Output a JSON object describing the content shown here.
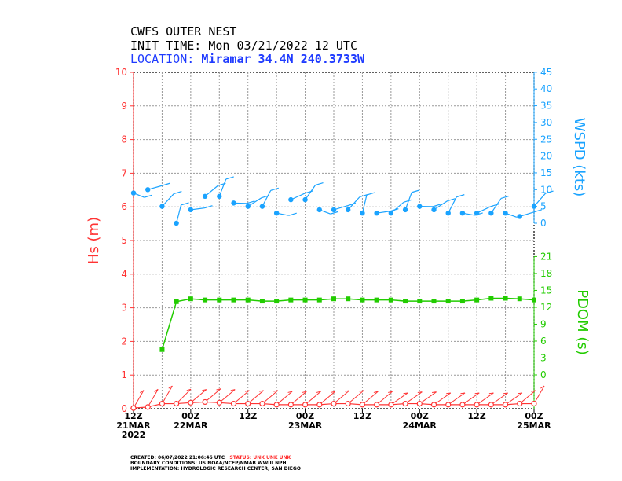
{
  "header": {
    "line1": "CWFS OUTER NEST",
    "line2": "INIT TIME: Mon 03/21/2022 12 UTC",
    "line3_label": "LOCATION: ",
    "line3_value": "Miramar 34.4N 240.3733W"
  },
  "footer": {
    "created_label": "CREATED: 06/07/2022 21:06:46 UTC",
    "status": "STATUS: UNK UNK UNK",
    "boundary": "BOUNDARY CONDITIONS: US NOAA/NCEP/NMAB WWIII NPH",
    "implementation": "IMPLEMENTATION: HYDROLOGIC RESEARCH CENTER, SAN DIEGO"
  },
  "colors": {
    "hs": "#ff3333",
    "wspd": "#1aa3ff",
    "tp": "#22cc00",
    "grid": "#999999"
  },
  "chart_data": {
    "type": "line",
    "x_ticks": [
      {
        "hour": 0,
        "line1": "12Z",
        "line2": "21MAR",
        "line3": "2022"
      },
      {
        "hour": 12,
        "line1": "00Z",
        "line2": "22MAR",
        "line3": ""
      },
      {
        "hour": 24,
        "line1": "12Z",
        "line2": "",
        "line3": ""
      },
      {
        "hour": 36,
        "line1": "00Z",
        "line2": "23MAR",
        "line3": ""
      },
      {
        "hour": 48,
        "line1": "12Z",
        "line2": "",
        "line3": ""
      },
      {
        "hour": 60,
        "line1": "00Z",
        "line2": "24MAR",
        "line3": ""
      },
      {
        "hour": 72,
        "line1": "12Z",
        "line2": "",
        "line3": ""
      },
      {
        "hour": 84,
        "line1": "00Z",
        "line2": "25MAR",
        "line3": ""
      }
    ],
    "xlim": [
      0,
      84
    ],
    "hs_axis": {
      "label": "Hs (m)",
      "ylim": [
        0,
        10
      ],
      "ticks": [
        "0",
        "1",
        "2",
        "3",
        "4",
        "5",
        "6",
        "7",
        "8",
        "9",
        "10"
      ]
    },
    "wspd_axis": {
      "label": "WSPD (kts)",
      "ticks": [
        "0",
        "5",
        "10",
        "15",
        "20",
        "25",
        "30",
        "35",
        "40",
        "45"
      ],
      "range": [
        0,
        45
      ]
    },
    "tp_axis": {
      "label": "PDOM (s)",
      "ticks": [
        "0",
        "3",
        "6",
        "9",
        "12",
        "15",
        "18",
        "21"
      ]
    },
    "hs_series": {
      "name": "Hs",
      "hours": [
        0,
        3,
        6,
        9,
        12,
        15,
        18,
        21,
        24,
        27,
        30,
        33,
        36,
        39,
        42,
        45,
        48,
        51,
        54,
        57,
        60,
        63,
        66,
        69,
        72,
        75,
        78,
        81,
        84
      ],
      "values": [
        0.02,
        0.05,
        0.15,
        0.15,
        0.18,
        0.2,
        0.18,
        0.15,
        0.15,
        0.15,
        0.12,
        0.12,
        0.12,
        0.12,
        0.15,
        0.15,
        0.12,
        0.12,
        0.12,
        0.15,
        0.15,
        0.12,
        0.12,
        0.12,
        0.12,
        0.12,
        0.12,
        0.15,
        0.15
      ],
      "dir_deg": [
        60,
        60,
        60,
        45,
        40,
        40,
        40,
        40,
        40,
        40,
        40,
        40,
        40,
        40,
        40,
        40,
        40,
        40,
        35,
        35,
        35,
        35,
        35,
        35,
        35,
        35,
        35,
        40,
        60
      ]
    },
    "wspd_series": {
      "name": "WSPD",
      "hours": [
        0,
        3,
        6,
        9,
        12,
        15,
        18,
        21,
        24,
        27,
        30,
        33,
        36,
        39,
        42,
        45,
        48,
        51,
        54,
        57,
        60,
        63,
        66,
        69,
        72,
        75,
        78,
        81,
        84
      ],
      "values": [
        9,
        10,
        5,
        0,
        4,
        8,
        8,
        6,
        5,
        5,
        3,
        7,
        7,
        4,
        4,
        4,
        3,
        3,
        3,
        4,
        5,
        4,
        3,
        3,
        3,
        3,
        3,
        2,
        5
      ]
    },
    "tp_series": {
      "name": "Tp",
      "hours": [
        6,
        9,
        12,
        15,
        18,
        21,
        24,
        27,
        30,
        33,
        36,
        39,
        42,
        45,
        48,
        51,
        54,
        57,
        60,
        63,
        66,
        69,
        72,
        75,
        78,
        81,
        84
      ],
      "values": [
        4.5,
        13,
        13.5,
        13.3,
        13.3,
        13.3,
        13.3,
        13.1,
        13.1,
        13.3,
        13.3,
        13.3,
        13.5,
        13.5,
        13.3,
        13.3,
        13.3,
        13.1,
        13.1,
        13.1,
        13.1,
        13.1,
        13.3,
        13.6,
        13.6,
        13.5,
        13.3
      ]
    }
  }
}
